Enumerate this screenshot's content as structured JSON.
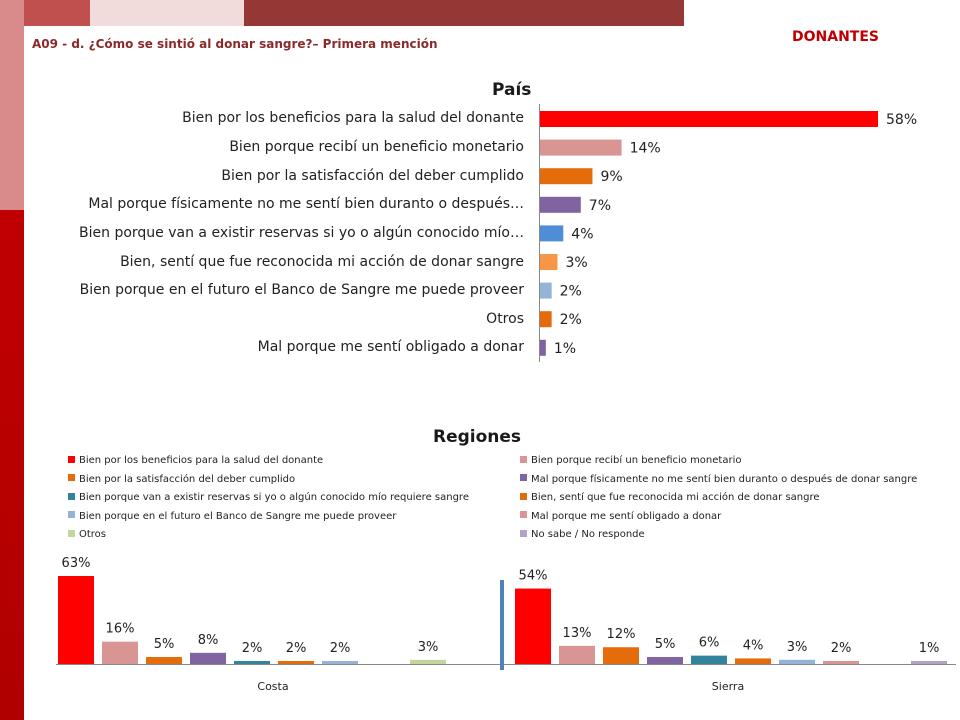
{
  "header": {
    "subtitle": "A09 - d. ¿Cómo se sintió al donar sangre?– Primera mención",
    "segment": "DONANTES"
  },
  "chart_data": [
    {
      "type": "bar",
      "orientation": "horizontal",
      "title": "País",
      "categories": [
        "Bien por los beneficios para la salud del donante",
        "Bien porque recibí un beneficio monetario",
        "Bien por la satisfacción del deber cumplido",
        "Mal porque físicamente no me sentí bien duranto o después…",
        "Bien porque van a existir reservas si yo o algún conocido mío…",
        "Bien, sentí que fue reconocida mi acción de donar sangre",
        "Bien porque en el futuro el Banco de Sangre me puede proveer",
        "Otros",
        "Mal porque me sentí obligado a donar"
      ],
      "values": [
        58,
        14,
        9,
        7,
        4,
        3,
        2,
        2,
        1
      ],
      "value_labels": [
        "58%",
        "14%",
        "9%",
        "7%",
        "4%",
        "3%",
        "2%",
        "2%",
        "1%"
      ],
      "colors": [
        "#ff0000",
        "#d99594",
        "#e46c0a",
        "#8064a2",
        "#4f8ed6",
        "#f79646",
        "#95b3d7",
        "#e46c0a",
        "#8064a2"
      ],
      "xlim": [
        0,
        58
      ]
    },
    {
      "type": "bar",
      "title": "Regiones",
      "categories": [
        "Costa",
        "Sierra"
      ],
      "legend_position": "top",
      "series": [
        {
          "name": "Bien por los beneficios para la salud del donante",
          "color": "#ff0000",
          "values": [
            63,
            54
          ],
          "labels": [
            "63%",
            "54%"
          ]
        },
        {
          "name": "Bien porque recibí un beneficio monetario",
          "color": "#d99594",
          "values": [
            16,
            13
          ],
          "labels": [
            "16%",
            "13%"
          ]
        },
        {
          "name": "Bien por la satisfacción del deber cumplido",
          "color": "#e46c0a",
          "values": [
            5,
            12
          ],
          "labels": [
            "5%",
            "12%"
          ]
        },
        {
          "name": "Mal porque físicamente no me sentí bien duranto o después de donar sangre",
          "color": "#8064a2",
          "values": [
            8,
            5
          ],
          "labels": [
            "8%",
            "5%"
          ]
        },
        {
          "name": "Bien porque van a existir reservas si yo o algún conocido mío requiere sangre",
          "color": "#31849b",
          "values": [
            2,
            6
          ],
          "labels": [
            "2%",
            "6%"
          ]
        },
        {
          "name": "Bien, sentí que fue reconocida mi acción de donar sangre",
          "color": "#e46c0a",
          "values": [
            2,
            4
          ],
          "labels": [
            "2%",
            "4%"
          ]
        },
        {
          "name": "Bien porque en el futuro el Banco de Sangre me puede proveer",
          "color": "#95b3d7",
          "values": [
            2,
            3
          ],
          "labels": [
            "2%",
            "3%"
          ]
        },
        {
          "name": "Mal porque me sentí obligado a donar",
          "color": "#d99594",
          "values": [
            0,
            2
          ],
          "labels": [
            "",
            "2%"
          ]
        },
        {
          "name": "Otros",
          "color": "#c3d69b",
          "values": [
            3,
            0
          ],
          "labels": [
            "3%",
            ""
          ]
        },
        {
          "name": "No sabe / No responde",
          "color": "#b3a2c7",
          "values": [
            0,
            1
          ],
          "labels": [
            "",
            "1%"
          ]
        }
      ],
      "ylim": [
        0,
        63
      ]
    }
  ]
}
